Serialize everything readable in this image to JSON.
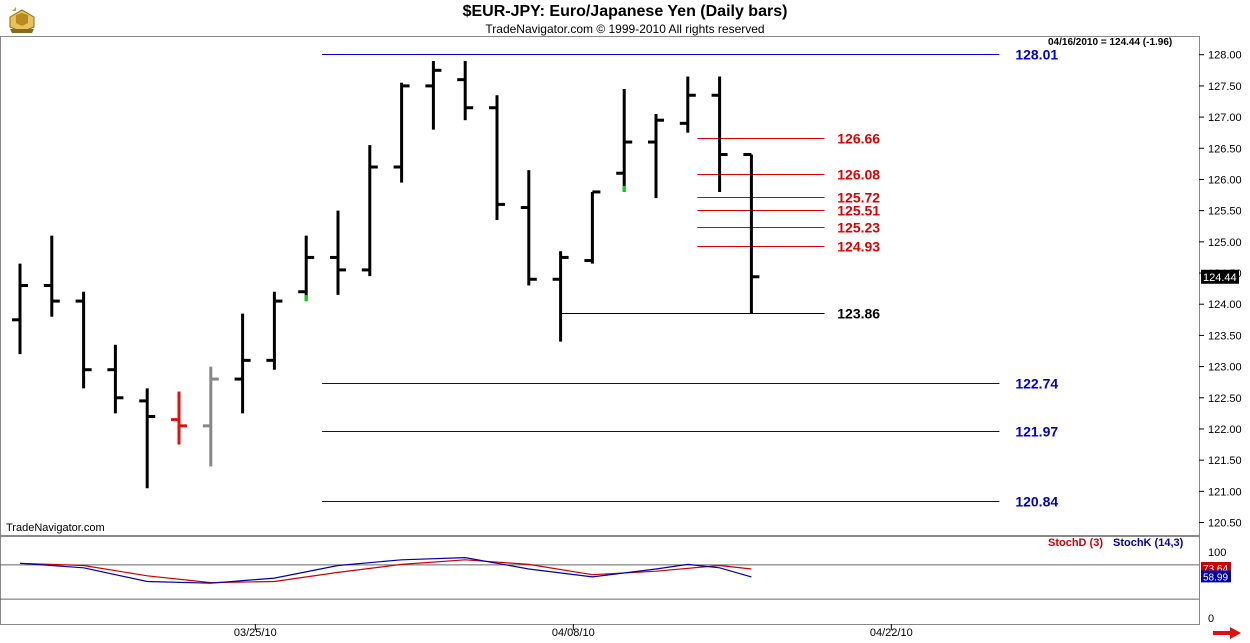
{
  "header": {
    "title": "$EUR-JPY:  Euro/Japanese Yen  (Daily bars)",
    "subtitle": "TradeNavigator.com © 1999-2010 All rights reserved",
    "quote": "04/16/2010 = 124.44 (-1.96)",
    "watermark": "TradeNavigator.com"
  },
  "colors": {
    "bar": "#000000",
    "blue_level": "#0000cc",
    "red_level": "#dd0000",
    "stochD": "#cc0000",
    "stochK": "#0000aa",
    "green_tick": "#00dd00",
    "grid": "#000000"
  },
  "chart_data": [
    {
      "type": "ohlc",
      "title": "$EUR-JPY:  Euro/Japanese Yen  (Daily bars)",
      "ylim": [
        120.3,
        128.3
      ],
      "y_ticks": [
        "128.00",
        "127.50",
        "127.00",
        "126.50",
        "126.00",
        "125.50",
        "125.00",
        "124.50",
        "124.00",
        "123.50",
        "123.00",
        "122.50",
        "122.00",
        "121.50",
        "121.00",
        "120.50"
      ],
      "x_ticks": [
        {
          "label": "03/25/10",
          "index": 7.4
        },
        {
          "label": "04/08/10",
          "index": 17.4
        },
        {
          "label": "04/22/10",
          "index": 27.4
        }
      ],
      "last_price": "124.44",
      "bars": [
        {
          "o": 123.75,
          "h": 124.65,
          "l": 123.2,
          "c": 124.3,
          "color": "black"
        },
        {
          "o": 124.3,
          "h": 125.1,
          "l": 123.8,
          "c": 124.05,
          "color": "black"
        },
        {
          "o": 124.05,
          "h": 124.2,
          "l": 122.65,
          "c": 122.95,
          "color": "black"
        },
        {
          "o": 122.95,
          "h": 123.35,
          "l": 122.25,
          "c": 122.5,
          "color": "black"
        },
        {
          "o": 122.45,
          "h": 122.65,
          "l": 121.05,
          "c": 122.2,
          "color": "black"
        },
        {
          "o": 122.15,
          "h": 122.6,
          "l": 121.75,
          "c": 122.05,
          "color": "red"
        },
        {
          "o": 122.05,
          "h": 123.0,
          "l": 121.4,
          "c": 122.8,
          "color": "gray"
        },
        {
          "o": 122.8,
          "h": 123.85,
          "l": 122.25,
          "c": 123.1,
          "color": "black"
        },
        {
          "o": 123.1,
          "h": 124.2,
          "l": 122.95,
          "c": 124.05,
          "color": "black"
        },
        {
          "o": 124.2,
          "h": 125.1,
          "l": 124.05,
          "c": 124.75,
          "color": "black",
          "green": "low"
        },
        {
          "o": 124.75,
          "h": 125.5,
          "l": 124.15,
          "c": 124.55,
          "color": "black"
        },
        {
          "o": 124.55,
          "h": 126.55,
          "l": 124.45,
          "c": 126.2,
          "color": "black"
        },
        {
          "o": 126.2,
          "h": 127.55,
          "l": 125.95,
          "c": 127.5,
          "color": "black"
        },
        {
          "o": 127.5,
          "h": 127.9,
          "l": 126.8,
          "c": 127.75,
          "color": "black"
        },
        {
          "o": 127.6,
          "h": 127.9,
          "l": 126.95,
          "c": 127.15,
          "color": "black"
        },
        {
          "o": 127.15,
          "h": 127.35,
          "l": 125.35,
          "c": 125.6,
          "color": "black"
        },
        {
          "o": 125.55,
          "h": 126.15,
          "l": 124.3,
          "c": 124.4,
          "color": "black"
        },
        {
          "o": 124.4,
          "h": 124.85,
          "l": 123.4,
          "c": 124.75,
          "color": "black"
        },
        {
          "o": 124.7,
          "h": 125.8,
          "l": 124.65,
          "c": 125.8,
          "color": "black"
        },
        {
          "o": 126.1,
          "h": 127.45,
          "l": 125.8,
          "c": 126.6,
          "color": "black",
          "green": "low"
        },
        {
          "o": 126.6,
          "h": 127.05,
          "l": 125.7,
          "c": 126.95,
          "color": "black"
        },
        {
          "o": 126.9,
          "h": 127.65,
          "l": 126.75,
          "c": 127.35,
          "color": "black"
        },
        {
          "o": 127.35,
          "h": 127.65,
          "l": 125.8,
          "c": 126.4,
          "color": "black"
        },
        {
          "o": 126.4,
          "h": 126.4,
          "l": 123.86,
          "c": 124.44,
          "color": "black"
        }
      ],
      "levels": [
        {
          "value": 128.01,
          "label": "128.01",
          "color": "blue",
          "from": 9.5,
          "to": 30.8,
          "label_x": 31.3
        },
        {
          "value": 122.74,
          "label": "122.74",
          "color": "blue",
          "from": 9.5,
          "to": 30.8,
          "label_x": 31.3
        },
        {
          "value": 121.97,
          "label": "121.97",
          "color": "blue",
          "from": 9.5,
          "to": 30.8,
          "label_x": 31.3
        },
        {
          "value": 120.84,
          "label": "120.84",
          "color": "blue",
          "from": 9.5,
          "to": 30.8,
          "label_x": 31.3
        },
        {
          "value": 126.66,
          "label": "126.66",
          "color": "red",
          "from": 21.3,
          "to": 25.3,
          "label_x": 25.7
        },
        {
          "value": 126.08,
          "label": "126.08",
          "color": "red",
          "from": 21.3,
          "to": 25.3,
          "label_x": 25.7
        },
        {
          "value": 125.72,
          "label": "125.72",
          "color": "red",
          "from": 21.3,
          "to": 25.3,
          "label_x": 25.7
        },
        {
          "value": 125.51,
          "label": "125.51",
          "color": "red",
          "from": 21.3,
          "to": 25.3,
          "label_x": 25.7
        },
        {
          "value": 125.23,
          "label": "125.23",
          "color": "red",
          "from": 21.3,
          "to": 25.3,
          "label_x": 25.7
        },
        {
          "value": 124.93,
          "label": "124.93",
          "color": "red",
          "from": 21.3,
          "to": 25.3,
          "label_x": 25.7
        },
        {
          "value": 123.86,
          "label": "123.86",
          "color": "black",
          "from": 17.0,
          "to": 25.3,
          "label_x": 25.7
        }
      ]
    },
    {
      "type": "line",
      "title": "StochD (3)  StochK (14,3)",
      "ylim": [
        0,
        100
      ],
      "y_ticks": [
        "100",
        "0"
      ],
      "last_values": {
        "stochD": "73.64",
        "stochK": "58.99"
      },
      "series": [
        {
          "name": "StochD (3)",
          "color": "red",
          "points": [
            [
              0,
              82
            ],
            [
              2,
              78
            ],
            [
              4,
              60
            ],
            [
              6,
              48
            ],
            [
              8,
              50
            ],
            [
              10,
              66
            ],
            [
              12,
              80
            ],
            [
              14,
              88
            ],
            [
              16,
              80
            ],
            [
              18,
              62
            ],
            [
              20,
              68
            ],
            [
              22,
              78
            ],
            [
              23,
              72
            ]
          ]
        },
        {
          "name": "StochK (14,3)",
          "color": "blue",
          "points": [
            [
              0,
              82
            ],
            [
              2,
              74
            ],
            [
              4,
              50
            ],
            [
              6,
              47
            ],
            [
              8,
              56
            ],
            [
              10,
              78
            ],
            [
              12,
              88
            ],
            [
              14,
              92
            ],
            [
              16,
              72
            ],
            [
              18,
              58
            ],
            [
              20,
              72
            ],
            [
              21,
              80
            ],
            [
              22,
              74
            ],
            [
              23,
              58
            ]
          ]
        }
      ]
    }
  ],
  "indicator_labels": {
    "stochD": "StochD (3)",
    "stochK": "StochK (14,3)"
  },
  "icons": {
    "logo": "ship-wheel-icon",
    "nav": "right-arrow-icon"
  }
}
